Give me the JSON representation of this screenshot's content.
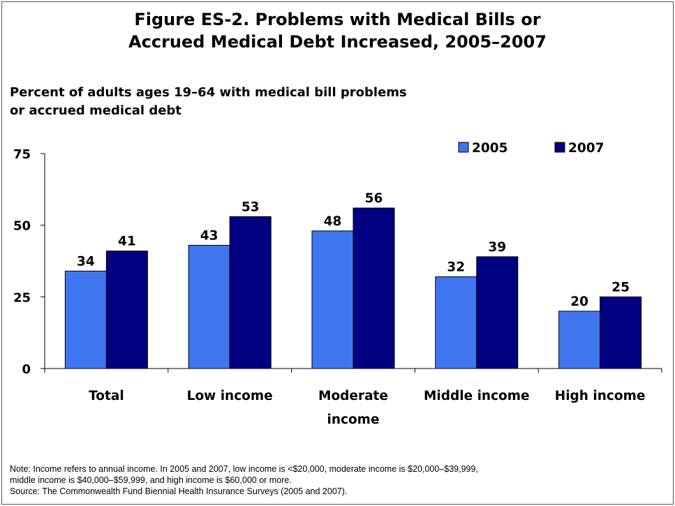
{
  "chart_data": {
    "type": "bar",
    "title_lines": [
      "Figure ES-2. Problems with Medical Bills or",
      "Accrued Medical Debt Increased, 2005–2007"
    ],
    "subtitle_lines": [
      "Percent of adults ages 19–64 with medical bill problems",
      "or accrued medical debt"
    ],
    "categories": [
      [
        "Total"
      ],
      [
        "Low income"
      ],
      [
        "Moderate",
        "income"
      ],
      [
        "Middle income"
      ],
      [
        "High income"
      ]
    ],
    "series": [
      {
        "name": "2005",
        "values": [
          34,
          43,
          48,
          32,
          20
        ],
        "color": "#3f76f0"
      },
      {
        "name": "2007",
        "values": [
          41,
          53,
          56,
          39,
          25
        ],
        "color": "#000080"
      }
    ],
    "ylim": [
      0,
      75
    ],
    "yticks": [
      0,
      25,
      50,
      75
    ],
    "grid": false,
    "legend_position": "top-right",
    "xlabel": "",
    "ylabel": ""
  },
  "notes": [
    "Note: Income refers to annual income. In 2005 and 2007, low income is <$20,000, moderate income is $20,000–$39,999,",
    "middle income is $40,000–$59,999, and high income is $60,000 or more.",
    "Source: The Commonwealth Fund Biennial Health Insurance Surveys (2005 and 2007)."
  ]
}
